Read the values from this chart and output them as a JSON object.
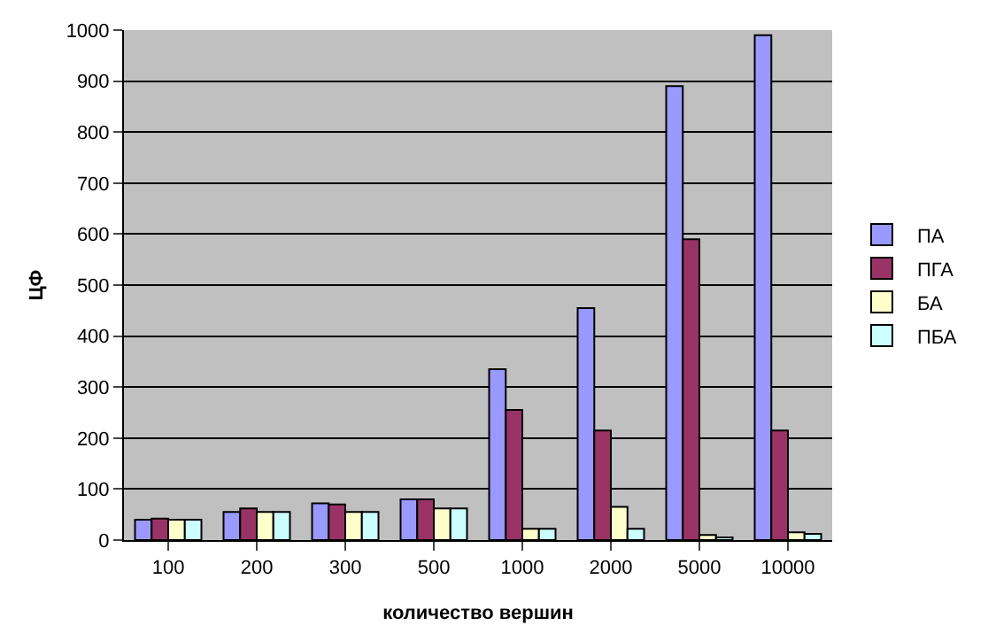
{
  "chart_data": {
    "type": "bar",
    "xlabel": "количество вершин",
    "ylabel": "ЦФ",
    "categories": [
      "100",
      "200",
      "300",
      "500",
      "1000",
      "2000",
      "5000",
      "10000"
    ],
    "series": [
      {
        "name": "ПА",
        "color": "#9999ff",
        "values": [
          40,
          55,
          72,
          80,
          335,
          455,
          890,
          990
        ]
      },
      {
        "name": "ПГА",
        "color": "#993366",
        "values": [
          42,
          62,
          70,
          80,
          255,
          215,
          590,
          215
        ]
      },
      {
        "name": "БА",
        "color": "#ffffcc",
        "values": [
          40,
          55,
          55,
          62,
          22,
          65,
          10,
          15
        ]
      },
      {
        "name": "ПБА",
        "color": "#ccffff",
        "values": [
          40,
          55,
          55,
          62,
          22,
          22,
          5,
          12
        ]
      }
    ],
    "ylim": [
      0,
      1000
    ],
    "yticks": [
      0,
      100,
      200,
      300,
      400,
      500,
      600,
      700,
      800,
      900,
      1000
    ],
    "grid": "y",
    "legend": "right"
  }
}
